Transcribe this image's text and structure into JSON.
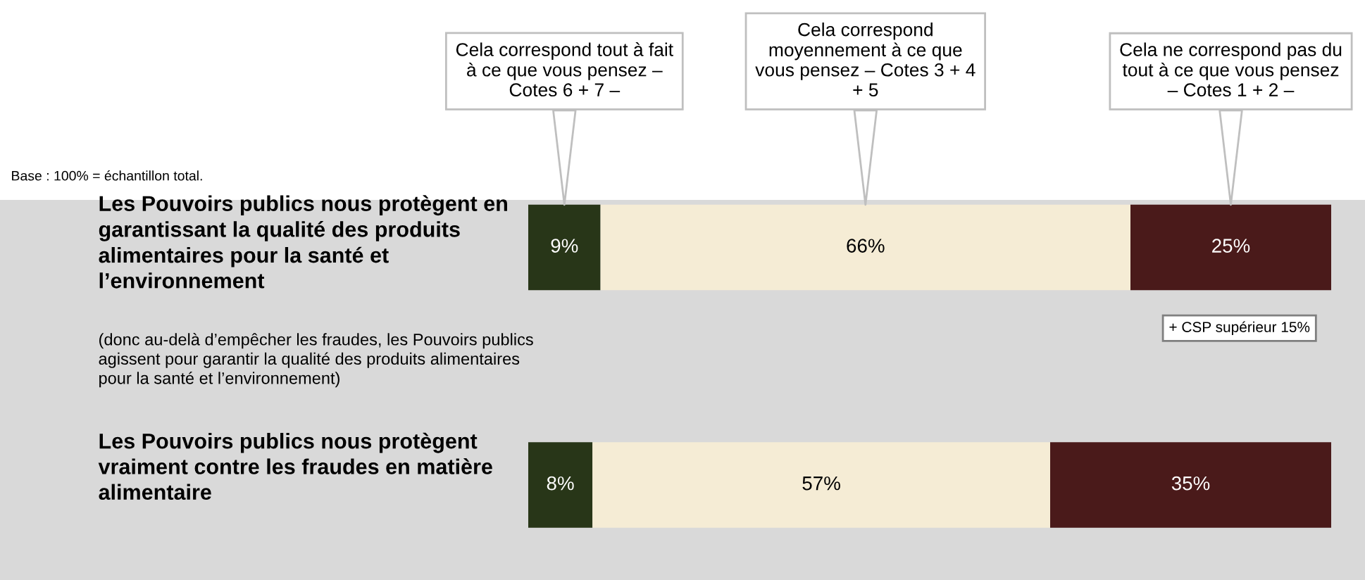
{
  "chart_data": {
    "type": "bar",
    "orientation": "horizontal",
    "stacked": true,
    "categories": [
      "Les Pouvoirs publics nous protègent en garantissant la qualité des produits alimentaires pour la santé et l’environnement",
      "Les Pouvoirs publics nous protègent vraiment contre les fraudes en matière alimentaire"
    ],
    "series": [
      {
        "name": "Cela correspond tout à fait à ce que vous pensez – Cotes 6 + 7 –",
        "color": "#283618",
        "values": [
          9,
          8
        ],
        "value_labels": [
          "9%",
          "8%"
        ]
      },
      {
        "name": "Cela correspond moyennement à ce que vous pensez – Cotes 3 + 4 + 5",
        "color": "#f5ecd5",
        "values": [
          66,
          57
        ],
        "value_labels": [
          "66%",
          "57%"
        ]
      },
      {
        "name": "Cela ne correspond pas du tout à ce que vous pensez – Cotes 1 + 2 –",
        "color": "#4a1a1a",
        "values": [
          25,
          35
        ],
        "value_labels": [
          "25%",
          "35%"
        ]
      }
    ],
    "annotations": [
      "Base : 100% = échantillon total.",
      "(donc au-delà d’empêcher les fraudes, les Pouvoirs publics agissent pour garantir la qualité des produits alimentaires pour la santé et l’environnement)",
      "+ CSP supérieur 15%"
    ]
  }
}
